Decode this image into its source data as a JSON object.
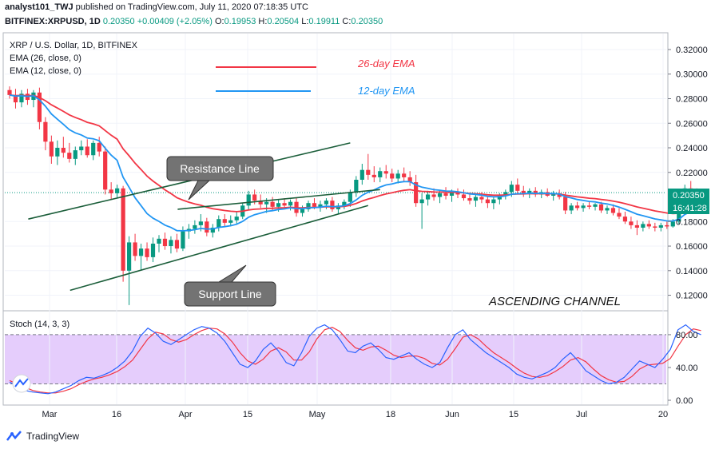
{
  "header": {
    "line1_user": "analyst101_TWJ",
    "line1_text": "published on TradingView.com, July 11, 2020 07:18:35 UTC",
    "symbol": "BITFINEX:XRPUSD, 1D",
    "last": "0.20350",
    "change": "+0.00409 (+2.05%)",
    "o_label": "O:",
    "o": "0.19953",
    "h_label": "H:",
    "h": "0.20504",
    "l_label": "L:",
    "l": "0.19911",
    "c_label": "C:",
    "c": "0.20350"
  },
  "legend": {
    "title": "XRP / U.S. Dollar, 1D, BITFINEX",
    "ema26": "EMA (26, close, 0)",
    "ema12": "EMA (12, close, 0)"
  },
  "annotations": {
    "ema26_label": "26-day EMA",
    "ema12_label": "12-day EMA",
    "resistance": "Resistance Line",
    "support": "Support Line",
    "pattern": "ASCENDING CHANNEL"
  },
  "price_badge": {
    "price": "0.20350",
    "countdown": "16:41:28"
  },
  "stoch_label": "Stoch (14, 3, 3)",
  "footer": {
    "brand": "TradingView"
  },
  "colors": {
    "up": "#089981",
    "down": "#f23645",
    "ema26": "#f23645",
    "ema12": "#2962ff",
    "stoch_k": "#2962ff",
    "stoch_d": "#f23645",
    "stoch_band": "#e1c4fb",
    "trendline": "#1b5e3a",
    "callout": "#737373"
  },
  "chart_data": {
    "type": "candlestick",
    "x_ticks": [
      "Mar",
      "16",
      "Apr",
      "15",
      "May",
      "18",
      "Jun",
      "15",
      "Jul",
      "20"
    ],
    "y_ticks": [
      "0.32000",
      "0.30000",
      "0.28000",
      "0.26000",
      "0.24000",
      "0.22000",
      "0.18000",
      "0.16000",
      "0.14000",
      "0.12000"
    ],
    "ylim": [
      0.108,
      0.333
    ],
    "candles": [
      {
        "o": 0.287,
        "h": 0.29,
        "l": 0.28,
        "c": 0.283
      },
      {
        "o": 0.283,
        "h": 0.288,
        "l": 0.272,
        "c": 0.277
      },
      {
        "o": 0.277,
        "h": 0.287,
        "l": 0.273,
        "c": 0.284
      },
      {
        "o": 0.284,
        "h": 0.288,
        "l": 0.275,
        "c": 0.279
      },
      {
        "o": 0.279,
        "h": 0.287,
        "l": 0.273,
        "c": 0.285
      },
      {
        "o": 0.285,
        "h": 0.289,
        "l": 0.255,
        "c": 0.261
      },
      {
        "o": 0.261,
        "h": 0.265,
        "l": 0.238,
        "c": 0.245
      },
      {
        "o": 0.245,
        "h": 0.25,
        "l": 0.227,
        "c": 0.233
      },
      {
        "o": 0.233,
        "h": 0.246,
        "l": 0.226,
        "c": 0.24
      },
      {
        "o": 0.24,
        "h": 0.249,
        "l": 0.232,
        "c": 0.236
      },
      {
        "o": 0.236,
        "h": 0.244,
        "l": 0.228,
        "c": 0.231
      },
      {
        "o": 0.231,
        "h": 0.241,
        "l": 0.226,
        "c": 0.238
      },
      {
        "o": 0.238,
        "h": 0.246,
        "l": 0.234,
        "c": 0.241
      },
      {
        "o": 0.241,
        "h": 0.247,
        "l": 0.232,
        "c": 0.234
      },
      {
        "o": 0.234,
        "h": 0.246,
        "l": 0.23,
        "c": 0.244
      },
      {
        "o": 0.244,
        "h": 0.249,
        "l": 0.233,
        "c": 0.237
      },
      {
        "o": 0.237,
        "h": 0.241,
        "l": 0.202,
        "c": 0.206
      },
      {
        "o": 0.206,
        "h": 0.212,
        "l": 0.198,
        "c": 0.203
      },
      {
        "o": 0.203,
        "h": 0.21,
        "l": 0.199,
        "c": 0.207
      },
      {
        "o": 0.207,
        "h": 0.209,
        "l": 0.131,
        "c": 0.14
      },
      {
        "o": 0.14,
        "h": 0.168,
        "l": 0.112,
        "c": 0.163
      },
      {
        "o": 0.163,
        "h": 0.17,
        "l": 0.148,
        "c": 0.152
      },
      {
        "o": 0.152,
        "h": 0.162,
        "l": 0.14,
        "c": 0.158
      },
      {
        "o": 0.158,
        "h": 0.163,
        "l": 0.148,
        "c": 0.151
      },
      {
        "o": 0.151,
        "h": 0.167,
        "l": 0.147,
        "c": 0.162
      },
      {
        "o": 0.162,
        "h": 0.169,
        "l": 0.155,
        "c": 0.166
      },
      {
        "o": 0.166,
        "h": 0.171,
        "l": 0.157,
        "c": 0.16
      },
      {
        "o": 0.16,
        "h": 0.168,
        "l": 0.154,
        "c": 0.165
      },
      {
        "o": 0.165,
        "h": 0.17,
        "l": 0.155,
        "c": 0.158
      },
      {
        "o": 0.158,
        "h": 0.176,
        "l": 0.156,
        "c": 0.172
      },
      {
        "o": 0.172,
        "h": 0.178,
        "l": 0.166,
        "c": 0.174
      },
      {
        "o": 0.174,
        "h": 0.181,
        "l": 0.17,
        "c": 0.177
      },
      {
        "o": 0.177,
        "h": 0.186,
        "l": 0.172,
        "c": 0.18
      },
      {
        "o": 0.18,
        "h": 0.183,
        "l": 0.168,
        "c": 0.171
      },
      {
        "o": 0.171,
        "h": 0.178,
        "l": 0.167,
        "c": 0.175
      },
      {
        "o": 0.175,
        "h": 0.185,
        "l": 0.172,
        "c": 0.182
      },
      {
        "o": 0.182,
        "h": 0.186,
        "l": 0.176,
        "c": 0.179
      },
      {
        "o": 0.179,
        "h": 0.185,
        "l": 0.176,
        "c": 0.181
      },
      {
        "o": 0.181,
        "h": 0.188,
        "l": 0.178,
        "c": 0.184
      },
      {
        "o": 0.184,
        "h": 0.195,
        "l": 0.182,
        "c": 0.193
      },
      {
        "o": 0.193,
        "h": 0.205,
        "l": 0.189,
        "c": 0.202
      },
      {
        "o": 0.202,
        "h": 0.206,
        "l": 0.194,
        "c": 0.197
      },
      {
        "o": 0.197,
        "h": 0.202,
        "l": 0.191,
        "c": 0.194
      },
      {
        "o": 0.194,
        "h": 0.199,
        "l": 0.187,
        "c": 0.196
      },
      {
        "o": 0.196,
        "h": 0.2,
        "l": 0.189,
        "c": 0.192
      },
      {
        "o": 0.192,
        "h": 0.198,
        "l": 0.188,
        "c": 0.195
      },
      {
        "o": 0.195,
        "h": 0.199,
        "l": 0.19,
        "c": 0.193
      },
      {
        "o": 0.193,
        "h": 0.198,
        "l": 0.189,
        "c": 0.196
      },
      {
        "o": 0.196,
        "h": 0.199,
        "l": 0.184,
        "c": 0.187
      },
      {
        "o": 0.187,
        "h": 0.193,
        "l": 0.184,
        "c": 0.19
      },
      {
        "o": 0.19,
        "h": 0.197,
        "l": 0.188,
        "c": 0.195
      },
      {
        "o": 0.195,
        "h": 0.199,
        "l": 0.19,
        "c": 0.192
      },
      {
        "o": 0.192,
        "h": 0.197,
        "l": 0.188,
        "c": 0.194
      },
      {
        "o": 0.194,
        "h": 0.199,
        "l": 0.19,
        "c": 0.197
      },
      {
        "o": 0.197,
        "h": 0.2,
        "l": 0.188,
        "c": 0.19
      },
      {
        "o": 0.19,
        "h": 0.195,
        "l": 0.186,
        "c": 0.193
      },
      {
        "o": 0.193,
        "h": 0.198,
        "l": 0.19,
        "c": 0.196
      },
      {
        "o": 0.196,
        "h": 0.206,
        "l": 0.192,
        "c": 0.204
      },
      {
        "o": 0.204,
        "h": 0.217,
        "l": 0.2,
        "c": 0.214
      },
      {
        "o": 0.214,
        "h": 0.227,
        "l": 0.21,
        "c": 0.222
      },
      {
        "o": 0.222,
        "h": 0.235,
        "l": 0.214,
        "c": 0.218
      },
      {
        "o": 0.218,
        "h": 0.225,
        "l": 0.212,
        "c": 0.216
      },
      {
        "o": 0.216,
        "h": 0.224,
        "l": 0.212,
        "c": 0.221
      },
      {
        "o": 0.221,
        "h": 0.226,
        "l": 0.215,
        "c": 0.219
      },
      {
        "o": 0.219,
        "h": 0.223,
        "l": 0.212,
        "c": 0.215
      },
      {
        "o": 0.215,
        "h": 0.222,
        "l": 0.211,
        "c": 0.219
      },
      {
        "o": 0.219,
        "h": 0.224,
        "l": 0.213,
        "c": 0.216
      },
      {
        "o": 0.216,
        "h": 0.221,
        "l": 0.209,
        "c": 0.212
      },
      {
        "o": 0.212,
        "h": 0.218,
        "l": 0.192,
        "c": 0.195
      },
      {
        "o": 0.195,
        "h": 0.203,
        "l": 0.174,
        "c": 0.198
      },
      {
        "o": 0.198,
        "h": 0.205,
        "l": 0.193,
        "c": 0.202
      },
      {
        "o": 0.202,
        "h": 0.207,
        "l": 0.197,
        "c": 0.2
      },
      {
        "o": 0.2,
        "h": 0.205,
        "l": 0.195,
        "c": 0.203
      },
      {
        "o": 0.203,
        "h": 0.208,
        "l": 0.198,
        "c": 0.201
      },
      {
        "o": 0.201,
        "h": 0.206,
        "l": 0.196,
        "c": 0.204
      },
      {
        "o": 0.204,
        "h": 0.207,
        "l": 0.199,
        "c": 0.202
      },
      {
        "o": 0.202,
        "h": 0.206,
        "l": 0.197,
        "c": 0.199
      },
      {
        "o": 0.199,
        "h": 0.203,
        "l": 0.194,
        "c": 0.197
      },
      {
        "o": 0.197,
        "h": 0.202,
        "l": 0.192,
        "c": 0.2
      },
      {
        "o": 0.2,
        "h": 0.204,
        "l": 0.195,
        "c": 0.198
      },
      {
        "o": 0.198,
        "h": 0.201,
        "l": 0.191,
        "c": 0.195
      },
      {
        "o": 0.195,
        "h": 0.2,
        "l": 0.19,
        "c": 0.198
      },
      {
        "o": 0.198,
        "h": 0.203,
        "l": 0.194,
        "c": 0.201
      },
      {
        "o": 0.201,
        "h": 0.206,
        "l": 0.198,
        "c": 0.204
      },
      {
        "o": 0.204,
        "h": 0.213,
        "l": 0.2,
        "c": 0.21
      },
      {
        "o": 0.21,
        "h": 0.215,
        "l": 0.202,
        "c": 0.205
      },
      {
        "o": 0.205,
        "h": 0.209,
        "l": 0.2,
        "c": 0.203
      },
      {
        "o": 0.203,
        "h": 0.207,
        "l": 0.199,
        "c": 0.205
      },
      {
        "o": 0.205,
        "h": 0.208,
        "l": 0.2,
        "c": 0.202
      },
      {
        "o": 0.202,
        "h": 0.206,
        "l": 0.199,
        "c": 0.204
      },
      {
        "o": 0.204,
        "h": 0.207,
        "l": 0.2,
        "c": 0.201
      },
      {
        "o": 0.201,
        "h": 0.205,
        "l": 0.197,
        "c": 0.203
      },
      {
        "o": 0.203,
        "h": 0.206,
        "l": 0.198,
        "c": 0.2
      },
      {
        "o": 0.2,
        "h": 0.204,
        "l": 0.186,
        "c": 0.189
      },
      {
        "o": 0.189,
        "h": 0.195,
        "l": 0.186,
        "c": 0.193
      },
      {
        "o": 0.193,
        "h": 0.196,
        "l": 0.189,
        "c": 0.191
      },
      {
        "o": 0.191,
        "h": 0.195,
        "l": 0.188,
        "c": 0.193
      },
      {
        "o": 0.193,
        "h": 0.196,
        "l": 0.19,
        "c": 0.192
      },
      {
        "o": 0.192,
        "h": 0.195,
        "l": 0.189,
        "c": 0.194
      },
      {
        "o": 0.194,
        "h": 0.196,
        "l": 0.187,
        "c": 0.189
      },
      {
        "o": 0.189,
        "h": 0.193,
        "l": 0.186,
        "c": 0.191
      },
      {
        "o": 0.191,
        "h": 0.194,
        "l": 0.185,
        "c": 0.187
      },
      {
        "o": 0.187,
        "h": 0.191,
        "l": 0.182,
        "c": 0.184
      },
      {
        "o": 0.184,
        "h": 0.188,
        "l": 0.178,
        "c": 0.18
      },
      {
        "o": 0.18,
        "h": 0.184,
        "l": 0.174,
        "c": 0.177
      },
      {
        "o": 0.177,
        "h": 0.181,
        "l": 0.169,
        "c": 0.175
      },
      {
        "o": 0.175,
        "h": 0.18,
        "l": 0.172,
        "c": 0.178
      },
      {
        "o": 0.178,
        "h": 0.181,
        "l": 0.174,
        "c": 0.176
      },
      {
        "o": 0.176,
        "h": 0.179,
        "l": 0.172,
        "c": 0.175
      },
      {
        "o": 0.175,
        "h": 0.179,
        "l": 0.172,
        "c": 0.177
      },
      {
        "o": 0.177,
        "h": 0.18,
        "l": 0.174,
        "c": 0.176
      },
      {
        "o": 0.176,
        "h": 0.182,
        "l": 0.175,
        "c": 0.18
      },
      {
        "o": 0.18,
        "h": 0.192,
        "l": 0.178,
        "c": 0.19
      },
      {
        "o": 0.19,
        "h": 0.21,
        "l": 0.188,
        "c": 0.207
      },
      {
        "o": 0.207,
        "h": 0.213,
        "l": 0.198,
        "c": 0.201
      },
      {
        "o": 0.201,
        "h": 0.207,
        "l": 0.196,
        "c": 0.199
      },
      {
        "o": 0.19953,
        "h": 0.20504,
        "l": 0.19911,
        "c": 0.2035
      }
    ],
    "trendlines": {
      "resistance_upper": [
        [
          5,
          0.182
        ],
        [
          57,
          0.244
        ]
      ],
      "support_lower": [
        [
          12,
          0.124
        ],
        [
          60,
          0.193
        ]
      ],
      "channel_mid": [
        [
          30,
          0.19
        ],
        [
          62,
          0.206
        ]
      ]
    },
    "stoch": {
      "ylim": [
        0,
        100
      ],
      "y_ticks": [
        "80.00",
        "40.00",
        "0.00"
      ],
      "band": [
        20,
        80
      ],
      "k": [
        22,
        18,
        12,
        10,
        9,
        8,
        10,
        14,
        18,
        24,
        28,
        27,
        30,
        34,
        40,
        48,
        60,
        78,
        88,
        82,
        72,
        68,
        74,
        80,
        86,
        90,
        88,
        82,
        72,
        58,
        44,
        40,
        48,
        62,
        70,
        60,
        46,
        42,
        58,
        78,
        88,
        92,
        86,
        74,
        60,
        58,
        66,
        70,
        62,
        52,
        50,
        54,
        58,
        50,
        44,
        40,
        46,
        64,
        80,
        86,
        74,
        66,
        58,
        52,
        46,
        40,
        32,
        28,
        26,
        30,
        34,
        40,
        50,
        58,
        48,
        36,
        30,
        24,
        20,
        22,
        28,
        38,
        48,
        44,
        40,
        50,
        62,
        86,
        92,
        84,
        80
      ],
      "d": [
        24,
        20,
        16,
        12,
        10,
        9,
        9,
        11,
        14,
        19,
        23,
        26,
        28,
        31,
        35,
        41,
        49,
        62,
        75,
        83,
        81,
        74,
        71,
        74,
        80,
        85,
        88,
        87,
        81,
        71,
        58,
        48,
        44,
        50,
        60,
        64,
        59,
        49,
        49,
        59,
        75,
        86,
        89,
        84,
        73,
        64,
        61,
        65,
        66,
        61,
        55,
        52,
        54,
        54,
        51,
        45,
        43,
        50,
        63,
        77,
        80,
        75,
        66,
        58,
        52,
        46,
        39,
        33,
        29,
        28,
        30,
        35,
        41,
        49,
        52,
        47,
        38,
        30,
        25,
        22,
        23,
        29,
        38,
        43,
        44,
        45,
        51,
        66,
        80,
        87,
        85
      ]
    }
  }
}
